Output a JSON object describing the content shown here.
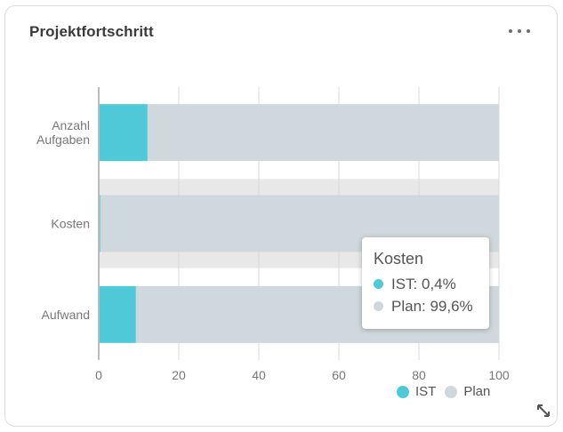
{
  "card": {
    "title": "Projektfortschritt",
    "menu_icon": "more-horizontal-icon",
    "resize_icon": "resize-diagonal-icon"
  },
  "colors": {
    "ist": "#4fc8d8",
    "plan": "#cfd8dc",
    "highlight_band": "#e8e8e8",
    "grid": "#d9d9d9",
    "text": "#777777"
  },
  "chart_data": {
    "type": "bar",
    "orientation": "horizontal",
    "stacked": true,
    "categories": [
      [
        "Anzahl",
        "Aufgaben"
      ],
      [
        "Kosten"
      ],
      [
        "Aufwand"
      ]
    ],
    "series": [
      {
        "name": "IST",
        "values": [
          12.2,
          0.4,
          9.3
        ]
      },
      {
        "name": "Plan",
        "values": [
          87.8,
          99.6,
          90.7
        ]
      }
    ],
    "xlim": [
      0,
      100
    ],
    "x_ticks": [
      0,
      20,
      40,
      60,
      80,
      100
    ],
    "grid": true,
    "legend": "bottom-right",
    "highlighted_category": 1
  },
  "tooltip": {
    "title": "Kosten",
    "rows": [
      {
        "label": "IST: 0,4%"
      },
      {
        "label": "Plan: 99,6%"
      }
    ]
  },
  "legend": {
    "items": [
      {
        "label": "IST"
      },
      {
        "label": "Plan"
      }
    ]
  }
}
